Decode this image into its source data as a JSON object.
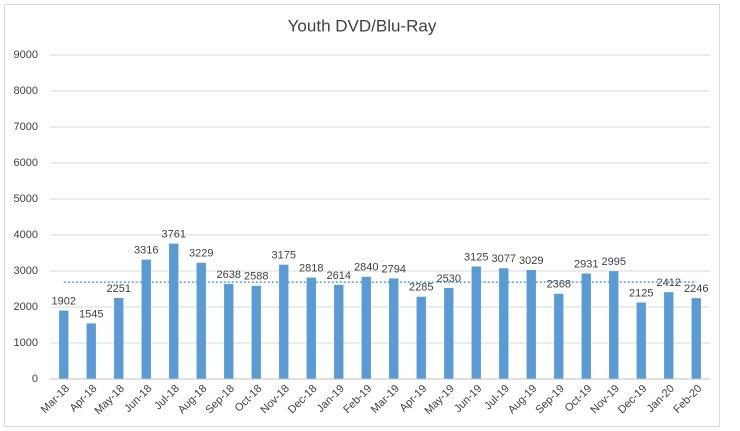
{
  "chart_data": {
    "type": "bar",
    "title": "Youth DVD/Blu-Ray",
    "categories": [
      "Mar-18",
      "Apr-18",
      "May-18",
      "Jun-18",
      "Jul-18",
      "Aug-18",
      "Sep-18",
      "Oct-18",
      "Nov-18",
      "Dec-18",
      "Jan-19",
      "Feb-19",
      "Mar-19",
      "Apr-19",
      "May-19",
      "Jun-19",
      "Jul-19",
      "Aug-19",
      "Sep-19",
      "Oct-19",
      "Nov-19",
      "Dec-19",
      "Jan-20",
      "Feb-20"
    ],
    "values": [
      1902,
      1545,
      2251,
      3316,
      3761,
      3229,
      2638,
      2588,
      3175,
      2818,
      2614,
      2840,
      2794,
      2285,
      2530,
      3125,
      3077,
      3029,
      2368,
      2931,
      2995,
      2125,
      2412,
      2246
    ],
    "color": "#5b9bd5",
    "ylim": [
      0,
      9000
    ],
    "yticks": [
      0,
      1000,
      2000,
      3000,
      4000,
      5000,
      6000,
      7000,
      8000,
      9000
    ],
    "grid": true,
    "trendline": "linear"
  }
}
